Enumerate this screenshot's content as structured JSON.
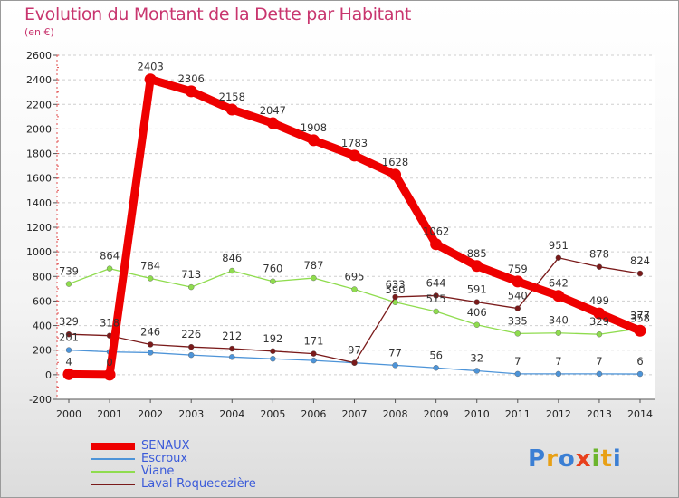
{
  "header": {
    "title": "Evolution du Montant de la Dette par Habitant",
    "subtitle": "(en €)"
  },
  "logo": {
    "text": "Proxiti",
    "letter_colors": [
      "#3b7fd4",
      "#e8a015",
      "#3b7fd4",
      "#e8401c",
      "#6cb52d",
      "#e8a015",
      "#3b7fd4"
    ]
  },
  "chart_data": {
    "type": "line",
    "title": "Evolution du Montant de la Dette par Habitant",
    "ylabel": "(en €)",
    "x": [
      "2000",
      "2001",
      "2002",
      "2003",
      "2004",
      "2005",
      "2006",
      "2007",
      "2008",
      "2009",
      "2010",
      "2011",
      "2012",
      "2013",
      "2014"
    ],
    "ylim": [
      -200,
      2600
    ],
    "yticks": [
      -200,
      0,
      200,
      400,
      600,
      800,
      1000,
      1200,
      1400,
      1600,
      1800,
      2000,
      2200,
      2400,
      2600
    ],
    "grid": "horizontal dashed",
    "legend_position": "bottom-left",
    "series": [
      {
        "name": "SENAUX",
        "color": "#ee0000",
        "values": [
          4,
          0,
          2403,
          2306,
          2158,
          2047,
          1908,
          1783,
          1628,
          1062,
          885,
          759,
          642,
          499,
          358
        ],
        "labels": [
          "4",
          "0",
          "2403",
          "2306",
          "2158",
          "2047",
          "1908",
          "1783",
          "1628",
          "1062",
          "885",
          "759",
          "642",
          "499",
          "358"
        ]
      },
      {
        "name": "Escroux",
        "color": "#4d94d8",
        "values": [
          201,
          186,
          180,
          160,
          144,
          130,
          116,
          97,
          77,
          56,
          32,
          7,
          7,
          7,
          6
        ],
        "labels": [
          "201",
          "",
          "",
          "",
          "",
          "",
          "",
          "",
          "77",
          "56",
          "32",
          "7",
          "7",
          "7",
          "6"
        ]
      },
      {
        "name": "Viane",
        "color": "#8fdc4e",
        "values": [
          739,
          864,
          784,
          713,
          846,
          760,
          787,
          695,
          590,
          515,
          406,
          335,
          340,
          329,
          377
        ],
        "labels": [
          "739",
          "864",
          "784",
          "713",
          "846",
          "760",
          "787",
          "695",
          "590",
          "515",
          "406",
          "335",
          "340",
          "329",
          "377"
        ]
      },
      {
        "name": "Laval-Roquecezière",
        "color": "#7a1a1a",
        "values": [
          329,
          318,
          246,
          226,
          212,
          192,
          171,
          97,
          633,
          644,
          591,
          540,
          951,
          878,
          824
        ],
        "labels": [
          "329",
          "318",
          "246",
          "226",
          "212",
          "192",
          "171",
          "97",
          "633",
          "644",
          "591",
          "540",
          "951",
          "878",
          "824"
        ]
      }
    ]
  }
}
